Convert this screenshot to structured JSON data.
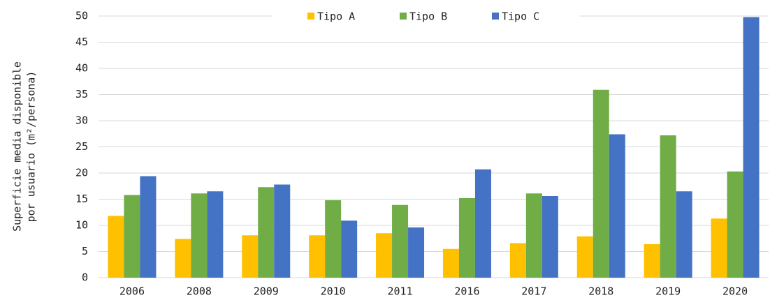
{
  "chart_data": {
    "type": "bar",
    "y_label": [
      "Superficie media disponible",
      "por usuario (m²/persona)"
    ],
    "categories": [
      "2006",
      "2008",
      "2009",
      "2010",
      "2011",
      "2016",
      "2017",
      "2018",
      "2019",
      "2020"
    ],
    "series": [
      {
        "name": "Tipo A",
        "color": "#ffc000",
        "values": [
          11.8,
          7.4,
          8.1,
          8.1,
          8.5,
          5.5,
          6.6,
          7.9,
          6.4,
          11.3
        ]
      },
      {
        "name": "Tipo B",
        "color": "#70ad47",
        "values": [
          15.8,
          16.1,
          17.3,
          14.8,
          13.9,
          15.2,
          16.1,
          35.9,
          27.2,
          20.3
        ]
      },
      {
        "name": "Tipo C",
        "color": "#4472c4",
        "values": [
          19.4,
          16.5,
          17.8,
          10.9,
          9.6,
          20.7,
          15.6,
          27.4,
          16.5,
          49.8
        ]
      }
    ],
    "ylim": [
      0,
      50
    ],
    "yticks": [
      0,
      5,
      10,
      15,
      20,
      25,
      30,
      35,
      40,
      45,
      50
    ],
    "grid": true,
    "legend": "top"
  }
}
